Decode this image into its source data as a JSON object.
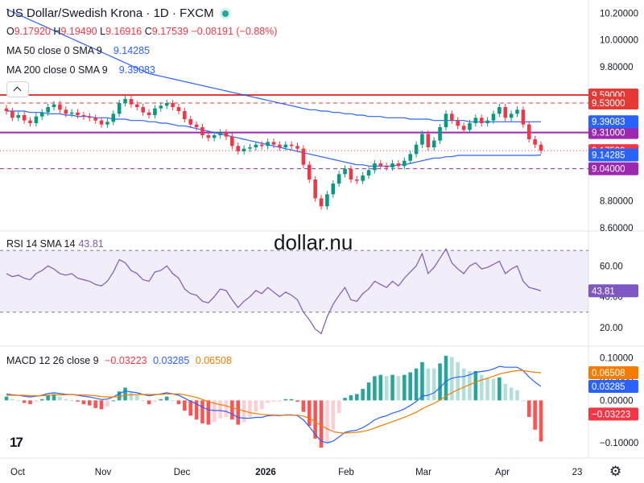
{
  "header": {
    "title": "US Dollar/Swedish Krona · 1D · FXCM",
    "ohlc": {
      "o_label": "O",
      "o": "9.17920",
      "h_label": "H",
      "h": "9.19490",
      "l_label": "L",
      "l": "9.16916",
      "c_label": "C",
      "c": "9.17539",
      "change": "−0.08191 (−0.88%)"
    }
  },
  "ma50": {
    "label": "MA 50 close 0 SMA 9",
    "value": "9.14285"
  },
  "ma200": {
    "label": "MA 200 close 0 SMA 9",
    "value": "9.39083"
  },
  "rsi_legend": {
    "label": "RSI 14 SMA 14",
    "value": "43.81"
  },
  "macd_legend": {
    "label": "MACD 12 26 close 9",
    "hist": "−0.03223",
    "macd": "0.03285",
    "signal": "0.06508"
  },
  "watermark": "dollar.nu",
  "colors": {
    "up": "#089981",
    "down": "#f23645",
    "ma50": "#2962ff",
    "ma200": "#2962ff",
    "rsi": "#7e57c2",
    "macd": "#2962ff",
    "signal": "#f57c00",
    "level_red": "#e53935",
    "level_purple": "#9c27b0",
    "dark_label": "#131722"
  },
  "price_axis": [
    "10.20000",
    "10.00000",
    "9.80000",
    "8.80000",
    "8.60000"
  ],
  "rsi_axis": [
    "60.00",
    "40.00",
    "20.00"
  ],
  "macd_axis": [
    "0.10000",
    "0.05000",
    "0.00000",
    "−0.10000"
  ],
  "time_axis": [
    "Oct",
    "Nov",
    "Dec",
    "2026",
    "Feb",
    "Mar",
    "Apr",
    "23"
  ],
  "levels": [
    {
      "label": "9.59000",
      "value": 9.59,
      "style": "solid",
      "color": "#e53935"
    },
    {
      "label": "9.53000",
      "value": 9.53,
      "style": "dashed",
      "color": "#e53935"
    },
    {
      "label": "9.31000",
      "value": 9.31,
      "style": "solid",
      "color": "#9c27b0"
    },
    {
      "label": "9.04000",
      "value": 9.04,
      "style": "dashed",
      "color": "#9c27b0"
    }
  ],
  "price_tags": [
    {
      "label": "9.39083",
      "value": 9.39083,
      "color": "#2962ff"
    },
    {
      "label": "9.17539",
      "value": 9.17539,
      "color": "#f23645"
    },
    {
      "label": "9.14285",
      "value": 9.14285,
      "color": "#2962ff"
    }
  ],
  "rsi_tag": {
    "label": "43.81",
    "value": 43.81
  },
  "macd_tags": [
    {
      "label": "0.06508",
      "value": 0.06508,
      "color": "#f57c00"
    },
    {
      "label": "0.03285",
      "value": 0.03285,
      "color": "#2962ff"
    },
    {
      "label": "−0.03223",
      "value": -0.03223,
      "color": "#f23645"
    }
  ],
  "chart_data": {
    "type": "line",
    "price": {
      "ylim": [
        8.6,
        10.25
      ],
      "close": [
        9.47,
        9.42,
        9.44,
        9.4,
        9.38,
        9.43,
        9.46,
        9.5,
        9.52,
        9.48,
        9.45,
        9.46,
        9.44,
        9.43,
        9.42,
        9.4,
        9.37,
        9.39,
        9.45,
        9.53,
        9.56,
        9.52,
        9.5,
        9.46,
        9.44,
        9.49,
        9.51,
        9.53,
        9.5,
        9.47,
        9.41,
        9.37,
        9.35,
        9.29,
        9.27,
        9.29,
        9.31,
        9.28,
        9.21,
        9.17,
        9.19,
        9.2,
        9.22,
        9.21,
        9.24,
        9.22,
        9.2,
        9.22,
        9.21,
        9.19,
        9.07,
        8.96,
        8.82,
        8.76,
        8.85,
        8.93,
        9.0,
        9.04,
        8.96,
        8.95,
        8.99,
        9.03,
        9.08,
        9.06,
        9.05,
        9.08,
        9.06,
        9.1,
        9.15,
        9.22,
        9.3,
        9.2,
        9.25,
        9.35,
        9.45,
        9.4,
        9.36,
        9.33,
        9.38,
        9.42,
        9.38,
        9.4,
        9.45,
        9.5,
        9.42,
        9.45,
        9.48,
        9.37,
        9.26,
        9.22,
        9.17539
      ],
      "ma50": [
        9.47,
        9.47,
        9.47,
        9.47,
        9.46,
        9.46,
        9.46,
        9.45,
        9.45,
        9.45,
        9.44,
        9.44,
        9.43,
        9.43,
        9.43,
        9.42,
        9.42,
        9.42,
        9.41,
        9.41,
        9.41,
        9.4,
        9.4,
        9.4,
        9.39,
        9.39,
        9.38,
        9.38,
        9.37,
        9.36,
        9.36,
        9.35,
        9.34,
        9.33,
        9.32,
        9.31,
        9.3,
        9.29,
        9.28,
        9.27,
        9.26,
        9.25,
        9.24,
        9.23,
        9.22,
        9.21,
        9.2,
        9.19,
        9.18,
        9.17,
        9.16,
        9.15,
        9.14,
        9.13,
        9.12,
        9.11,
        9.1,
        9.09,
        9.08,
        9.07,
        9.07,
        9.06,
        9.06,
        9.06,
        9.06,
        9.06,
        9.07,
        9.07,
        9.08,
        9.09,
        9.1,
        9.11,
        9.12,
        9.12,
        9.13,
        9.13,
        9.14,
        9.14,
        9.14,
        9.14,
        9.14,
        9.14,
        9.14,
        9.14,
        9.14,
        9.14,
        9.14,
        9.14,
        9.14,
        9.14,
        9.14285
      ],
      "ma200": [
        10.23,
        10.21,
        10.19,
        10.17,
        10.15,
        10.13,
        10.11,
        10.09,
        10.07,
        10.05,
        10.03,
        10.01,
        9.99,
        9.97,
        9.95,
        9.93,
        9.91,
        9.89,
        9.87,
        9.85,
        9.83,
        9.81,
        9.79,
        9.77,
        9.75,
        9.74,
        9.73,
        9.72,
        9.71,
        9.7,
        9.69,
        9.68,
        9.67,
        9.66,
        9.65,
        9.64,
        9.63,
        9.62,
        9.61,
        9.6,
        9.59,
        9.58,
        9.57,
        9.56,
        9.55,
        9.54,
        9.53,
        9.52,
        9.51,
        9.5,
        9.49,
        9.48,
        9.48,
        9.47,
        9.47,
        9.46,
        9.46,
        9.45,
        9.45,
        9.44,
        9.44,
        9.43,
        9.43,
        9.43,
        9.42,
        9.42,
        9.42,
        9.42,
        9.41,
        9.41,
        9.41,
        9.41,
        9.4,
        9.4,
        9.4,
        9.4,
        9.4,
        9.4,
        9.39,
        9.39,
        9.39,
        9.39,
        9.39,
        9.39,
        9.39,
        9.39,
        9.39,
        9.39,
        9.39,
        9.39,
        9.39083
      ]
    },
    "rsi": {
      "ylim": [
        10,
        80
      ],
      "bands": [
        70,
        30
      ],
      "values": [
        55,
        53,
        54,
        52,
        51,
        55,
        57,
        60,
        58,
        55,
        54,
        55,
        52,
        51,
        50,
        48,
        47,
        50,
        56,
        64,
        62,
        57,
        55,
        51,
        50,
        56,
        57,
        60,
        55,
        52,
        45,
        42,
        41,
        37,
        36,
        40,
        45,
        44,
        38,
        33,
        37,
        40,
        44,
        42,
        46,
        43,
        40,
        43,
        41,
        38,
        30,
        25,
        19,
        16,
        27,
        35,
        41,
        46,
        38,
        37,
        42,
        45,
        50,
        48,
        46,
        50,
        47,
        52,
        56,
        60,
        68,
        55,
        59,
        65,
        71,
        62,
        58,
        55,
        60,
        62,
        58,
        59,
        61,
        63,
        55,
        58,
        60,
        50,
        46,
        45,
        43.81
      ]
    },
    "macd": {
      "ylim": [
        -0.13,
        0.12
      ],
      "macd": [
        0.015,
        0.013,
        0.012,
        0.01,
        0.008,
        0.01,
        0.012,
        0.016,
        0.018,
        0.016,
        0.014,
        0.014,
        0.012,
        0.01,
        0.008,
        0.005,
        0.002,
        0.003,
        0.008,
        0.016,
        0.022,
        0.02,
        0.018,
        0.014,
        0.011,
        0.013,
        0.015,
        0.018,
        0.015,
        0.012,
        0.005,
        -0.002,
        -0.008,
        -0.016,
        -0.022,
        -0.024,
        -0.024,
        -0.026,
        -0.032,
        -0.04,
        -0.042,
        -0.042,
        -0.04,
        -0.04,
        -0.036,
        -0.035,
        -0.036,
        -0.034,
        -0.034,
        -0.036,
        -0.046,
        -0.062,
        -0.08,
        -0.096,
        -0.1,
        -0.096,
        -0.086,
        -0.075,
        -0.072,
        -0.07,
        -0.064,
        -0.056,
        -0.046,
        -0.04,
        -0.036,
        -0.03,
        -0.026,
        -0.02,
        -0.012,
        -0.003,
        0.01,
        0.012,
        0.018,
        0.03,
        0.045,
        0.052,
        0.055,
        0.056,
        0.06,
        0.066,
        0.068,
        0.07,
        0.074,
        0.08,
        0.078,
        0.078,
        0.078,
        0.07,
        0.055,
        0.043,
        0.03285
      ],
      "signal": [
        0.012,
        0.012,
        0.012,
        0.012,
        0.011,
        0.011,
        0.011,
        0.012,
        0.013,
        0.013,
        0.013,
        0.014,
        0.013,
        0.013,
        0.012,
        0.011,
        0.009,
        0.008,
        0.008,
        0.009,
        0.012,
        0.013,
        0.014,
        0.014,
        0.014,
        0.014,
        0.014,
        0.015,
        0.015,
        0.015,
        0.013,
        0.01,
        0.007,
        0.002,
        -0.003,
        -0.007,
        -0.01,
        -0.013,
        -0.017,
        -0.021,
        -0.025,
        -0.029,
        -0.031,
        -0.033,
        -0.034,
        -0.034,
        -0.035,
        -0.035,
        -0.035,
        -0.035,
        -0.037,
        -0.042,
        -0.05,
        -0.059,
        -0.067,
        -0.073,
        -0.076,
        -0.077,
        -0.076,
        -0.075,
        -0.073,
        -0.07,
        -0.065,
        -0.06,
        -0.055,
        -0.05,
        -0.045,
        -0.04,
        -0.034,
        -0.028,
        -0.02,
        -0.013,
        -0.007,
        0.001,
        0.01,
        0.018,
        0.025,
        0.031,
        0.037,
        0.043,
        0.048,
        0.052,
        0.057,
        0.062,
        0.065,
        0.068,
        0.07,
        0.07,
        0.068,
        0.066,
        0.06508
      ]
    },
    "time_labels": [
      "Oct",
      "Nov",
      "Dec",
      "2026",
      "Feb",
      "Mar",
      "Apr",
      "23"
    ]
  }
}
